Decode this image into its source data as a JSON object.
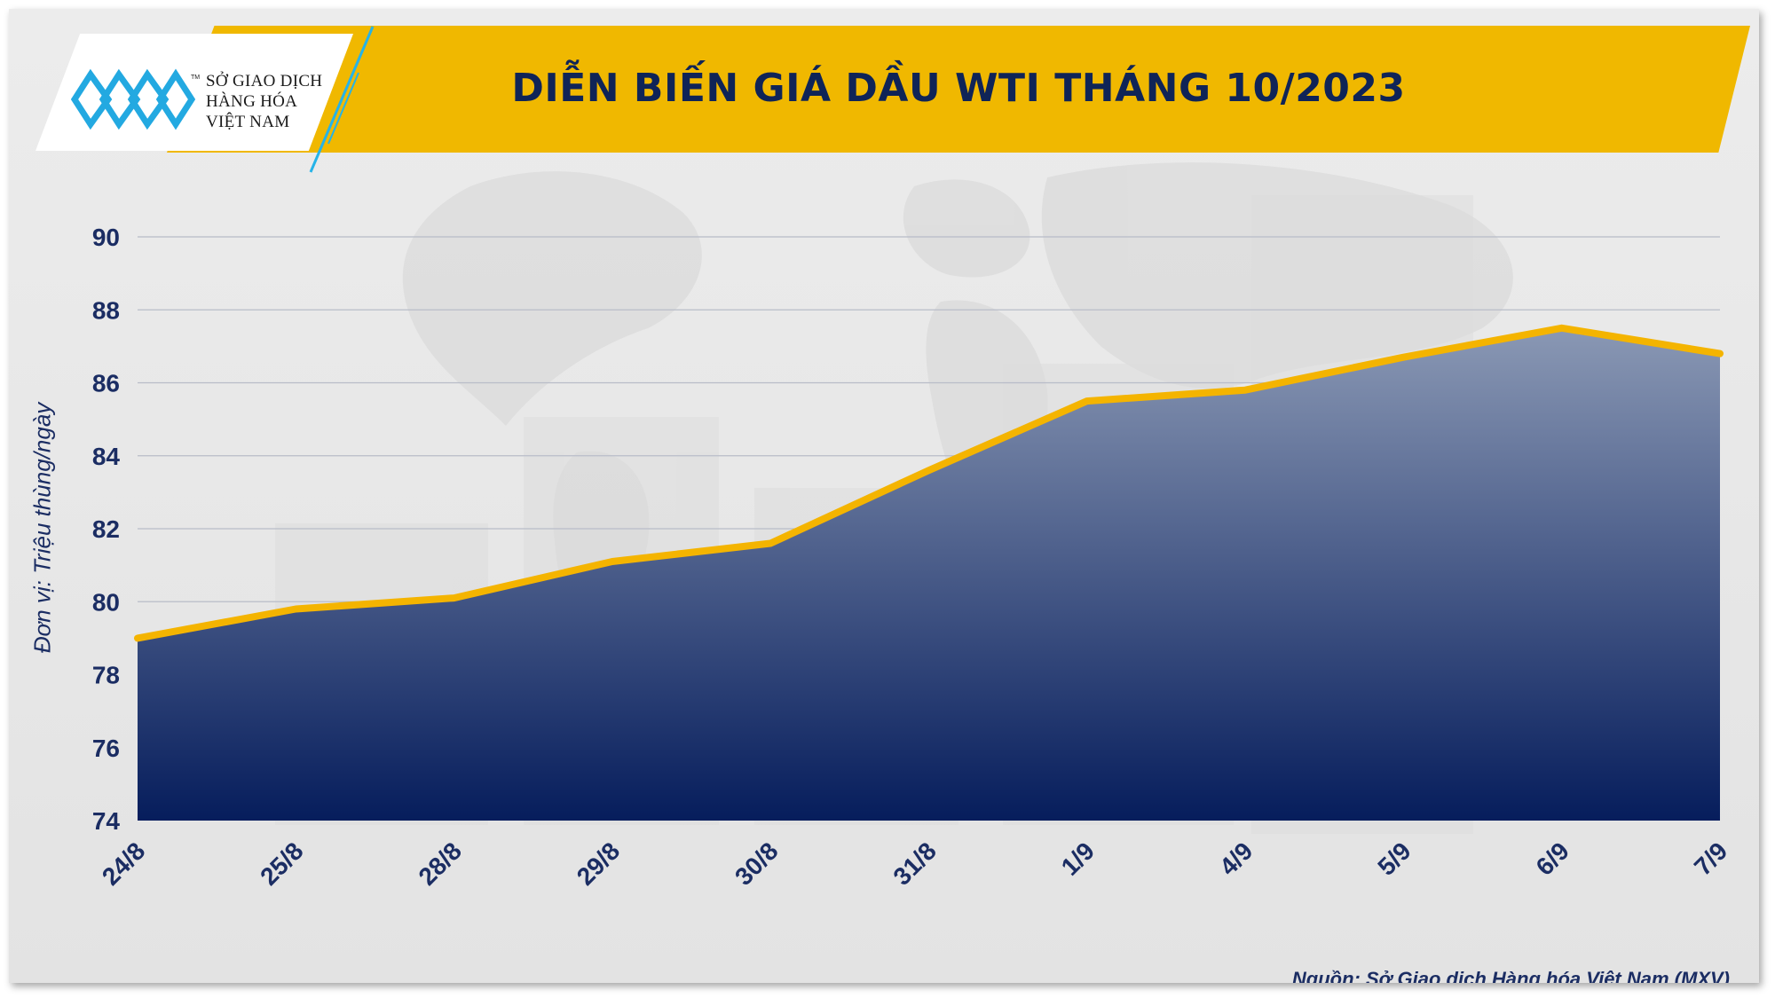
{
  "header": {
    "title": "DIỄN BIẾN GIÁ DẦU WTI THÁNG 10/2023"
  },
  "logo": {
    "line1": "SỞ GIAO DỊCH",
    "line2": "HÀNG HÓA",
    "line3": "VIỆT NAM",
    "tm": "TM"
  },
  "footer": {
    "source": "Nguồn: Sở Giao dịch Hàng hóa Việt Nam (MXV)"
  },
  "colors": {
    "banner": "#f0b800",
    "line": "#f4b400",
    "area_top": "#8a98b4",
    "area_bottom": "#061d5c",
    "text": "#1b2d63"
  },
  "chart_data": {
    "type": "area",
    "title": "DIỄN BIẾN GIÁ DẦU WTI THÁNG 10/2023",
    "xlabel": "",
    "ylabel": "Đơn vị: Triệu thùng/ngày",
    "categories": [
      "24/8",
      "25/8",
      "28/8",
      "29/8",
      "30/8",
      "31/8",
      "1/9",
      "4/9",
      "5/9",
      "6/9",
      "7/9"
    ],
    "values": [
      79.0,
      79.8,
      80.1,
      81.1,
      81.6,
      83.6,
      85.5,
      85.8,
      86.7,
      87.5,
      86.8
    ],
    "ylim": [
      74,
      90
    ],
    "yticks": [
      74,
      76,
      78,
      80,
      82,
      84,
      86,
      88,
      90
    ],
    "grid": true,
    "legend": "none"
  }
}
